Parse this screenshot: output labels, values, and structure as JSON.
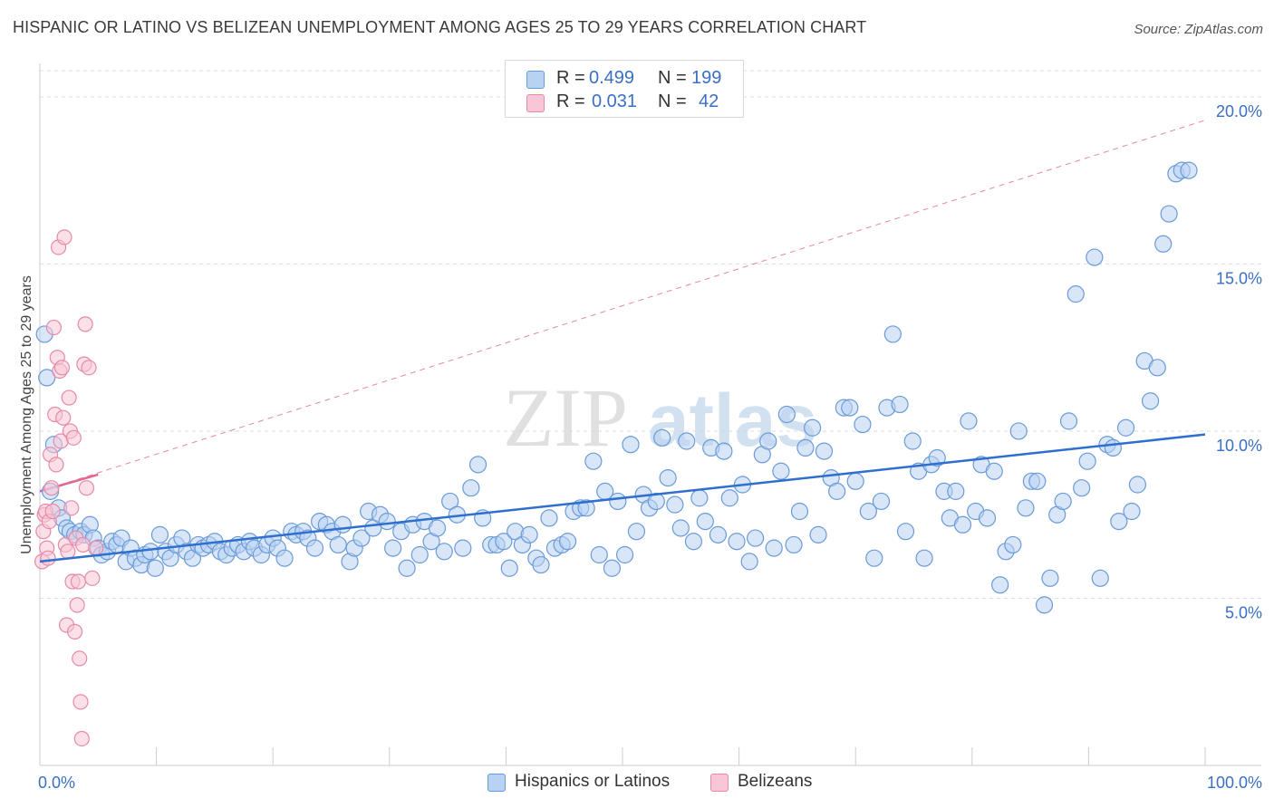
{
  "header": {
    "title": "HISPANIC OR LATINO VS BELIZEAN UNEMPLOYMENT AMONG AGES 25 TO 29 YEARS CORRELATION CHART",
    "source": "Source: ZipAtlas.com"
  },
  "watermark": {
    "text_zip": "ZIP",
    "text_atlas": "atlas"
  },
  "legend": {
    "rows": [
      {
        "r_label": "R =",
        "r_value": "0.499",
        "n_label": "N =",
        "n_value": "199"
      },
      {
        "r_label": "R =",
        "r_value": "0.031",
        "n_label": "N =",
        "n_value": "42"
      }
    ]
  },
  "colors": {
    "blue_fill": "#b8d2f2",
    "blue_stroke": "#6a9ad8",
    "blue_line": "#2f6fce",
    "pink_fill": "#f8c6d6",
    "pink_stroke": "#e58aa8",
    "pink_line": "#e06890",
    "grid": "#dddddd",
    "axis_label": "#3a6fc4"
  },
  "chart_data": {
    "type": "scatter",
    "ylabel": "Unemployment Among Ages 25 to 29 years",
    "x_tick_labels": [
      "0.0%",
      "100.0%"
    ],
    "y_tick_labels": [
      "5.0%",
      "10.0%",
      "15.0%",
      "20.0%"
    ],
    "x_range": [
      0,
      100
    ],
    "y_range": [
      0,
      21
    ],
    "y_ticks": [
      5,
      10,
      15,
      20
    ],
    "grid": true,
    "legend_position": "bottom-center",
    "series": [
      {
        "name": "Hispanics or Latinos",
        "trend": {
          "x0": 0,
          "y0": 6.1,
          "x1": 100,
          "y1": 9.9
        },
        "points": [
          [
            0.4,
            12.9
          ],
          [
            0.6,
            11.6
          ],
          [
            0.9,
            8.2
          ],
          [
            1.2,
            9.6
          ],
          [
            1.6,
            7.7
          ],
          [
            1.9,
            7.4
          ],
          [
            2.3,
            7.1
          ],
          [
            2.6,
            7.0
          ],
          [
            3.0,
            6.9
          ],
          [
            3.5,
            7.0
          ],
          [
            3.8,
            6.9
          ],
          [
            4.3,
            7.2
          ],
          [
            4.6,
            6.8
          ],
          [
            5.0,
            6.5
          ],
          [
            5.3,
            6.3
          ],
          [
            5.8,
            6.4
          ],
          [
            6.2,
            6.7
          ],
          [
            6.6,
            6.6
          ],
          [
            7.0,
            6.8
          ],
          [
            7.4,
            6.1
          ],
          [
            7.8,
            6.5
          ],
          [
            8.2,
            6.2
          ],
          [
            8.7,
            6.0
          ],
          [
            9.0,
            6.3
          ],
          [
            9.5,
            6.4
          ],
          [
            9.9,
            5.9
          ],
          [
            10.3,
            6.9
          ],
          [
            10.8,
            6.4
          ],
          [
            11.2,
            6.2
          ],
          [
            11.7,
            6.6
          ],
          [
            12.2,
            6.8
          ],
          [
            12.6,
            6.4
          ],
          [
            13.1,
            6.2
          ],
          [
            13.6,
            6.6
          ],
          [
            14.0,
            6.5
          ],
          [
            14.5,
            6.6
          ],
          [
            15.0,
            6.7
          ],
          [
            15.5,
            6.4
          ],
          [
            16.0,
            6.3
          ],
          [
            16.5,
            6.5
          ],
          [
            17.0,
            6.6
          ],
          [
            17.5,
            6.4
          ],
          [
            18.0,
            6.7
          ],
          [
            18.4,
            6.5
          ],
          [
            19.0,
            6.3
          ],
          [
            19.5,
            6.6
          ],
          [
            20.0,
            6.8
          ],
          [
            20.4,
            6.5
          ],
          [
            21.0,
            6.2
          ],
          [
            21.6,
            7.0
          ],
          [
            22.0,
            6.9
          ],
          [
            22.6,
            7.0
          ],
          [
            23.0,
            6.8
          ],
          [
            23.6,
            6.5
          ],
          [
            24.0,
            7.3
          ],
          [
            24.6,
            7.2
          ],
          [
            25.1,
            7.0
          ],
          [
            25.6,
            6.6
          ],
          [
            26.0,
            7.2
          ],
          [
            26.6,
            6.1
          ],
          [
            27.0,
            6.5
          ],
          [
            27.6,
            6.8
          ],
          [
            28.2,
            7.6
          ],
          [
            28.6,
            7.1
          ],
          [
            29.2,
            7.5
          ],
          [
            29.8,
            7.3
          ],
          [
            30.3,
            6.5
          ],
          [
            31.0,
            7.0
          ],
          [
            31.5,
            5.9
          ],
          [
            32.0,
            7.2
          ],
          [
            32.6,
            6.3
          ],
          [
            33.0,
            7.3
          ],
          [
            33.6,
            6.7
          ],
          [
            34.1,
            7.1
          ],
          [
            34.7,
            6.4
          ],
          [
            35.2,
            7.9
          ],
          [
            35.8,
            7.5
          ],
          [
            36.3,
            6.5
          ],
          [
            37.0,
            8.3
          ],
          [
            37.6,
            9.0
          ],
          [
            38.0,
            7.4
          ],
          [
            38.7,
            6.6
          ],
          [
            39.2,
            6.6
          ],
          [
            39.8,
            6.7
          ],
          [
            40.3,
            5.9
          ],
          [
            40.8,
            7.0
          ],
          [
            41.4,
            6.6
          ],
          [
            42.0,
            6.9
          ],
          [
            42.6,
            6.2
          ],
          [
            43.0,
            6.0
          ],
          [
            43.7,
            7.4
          ],
          [
            44.2,
            6.5
          ],
          [
            44.8,
            6.6
          ],
          [
            45.3,
            6.7
          ],
          [
            45.8,
            7.6
          ],
          [
            46.4,
            7.7
          ],
          [
            46.9,
            7.7
          ],
          [
            47.5,
            9.1
          ],
          [
            48.0,
            6.3
          ],
          [
            48.5,
            8.2
          ],
          [
            49.1,
            5.9
          ],
          [
            49.6,
            7.9
          ],
          [
            50.2,
            6.3
          ],
          [
            50.7,
            9.6
          ],
          [
            51.2,
            7.0
          ],
          [
            51.8,
            8.1
          ],
          [
            52.3,
            7.7
          ],
          [
            52.9,
            7.9
          ],
          [
            53.4,
            9.8
          ],
          [
            53.9,
            8.6
          ],
          [
            54.5,
            7.8
          ],
          [
            55.0,
            7.1
          ],
          [
            55.5,
            9.7
          ],
          [
            56.1,
            6.7
          ],
          [
            56.6,
            8.0
          ],
          [
            57.1,
            7.3
          ],
          [
            57.6,
            9.5
          ],
          [
            58.2,
            6.9
          ],
          [
            58.7,
            9.4
          ],
          [
            59.2,
            8.0
          ],
          [
            59.8,
            6.7
          ],
          [
            60.3,
            8.4
          ],
          [
            60.9,
            6.1
          ],
          [
            61.4,
            6.8
          ],
          [
            62.0,
            9.3
          ],
          [
            62.5,
            9.7
          ],
          [
            63.0,
            6.5
          ],
          [
            63.6,
            8.8
          ],
          [
            64.1,
            10.5
          ],
          [
            64.7,
            6.6
          ],
          [
            65.2,
            7.6
          ],
          [
            65.7,
            9.5
          ],
          [
            66.3,
            10.1
          ],
          [
            66.8,
            6.9
          ],
          [
            67.3,
            9.4
          ],
          [
            67.9,
            8.6
          ],
          [
            68.4,
            8.2
          ],
          [
            69.0,
            10.7
          ],
          [
            69.5,
            10.7
          ],
          [
            70.0,
            8.5
          ],
          [
            70.6,
            10.2
          ],
          [
            71.1,
            7.6
          ],
          [
            71.6,
            6.2
          ],
          [
            72.2,
            7.9
          ],
          [
            72.7,
            10.7
          ],
          [
            73.2,
            12.9
          ],
          [
            73.8,
            10.8
          ],
          [
            74.3,
            7.0
          ],
          [
            74.9,
            9.7
          ],
          [
            75.4,
            8.8
          ],
          [
            75.9,
            6.2
          ],
          [
            76.5,
            9.0
          ],
          [
            77.0,
            9.2
          ],
          [
            77.6,
            8.2
          ],
          [
            78.1,
            7.4
          ],
          [
            78.6,
            8.2
          ],
          [
            79.2,
            7.2
          ],
          [
            79.7,
            10.3
          ],
          [
            80.3,
            7.6
          ],
          [
            80.8,
            9.0
          ],
          [
            81.3,
            7.4
          ],
          [
            81.9,
            8.8
          ],
          [
            82.4,
            5.4
          ],
          [
            82.9,
            6.4
          ],
          [
            83.5,
            6.6
          ],
          [
            84.0,
            10.0
          ],
          [
            84.6,
            7.7
          ],
          [
            85.1,
            8.5
          ],
          [
            85.6,
            8.5
          ],
          [
            86.2,
            4.8
          ],
          [
            86.7,
            5.6
          ],
          [
            87.3,
            7.5
          ],
          [
            87.8,
            7.9
          ],
          [
            88.3,
            10.3
          ],
          [
            88.9,
            14.1
          ],
          [
            89.4,
            8.3
          ],
          [
            89.9,
            9.1
          ],
          [
            90.5,
            15.2
          ],
          [
            91.0,
            5.6
          ],
          [
            91.6,
            9.6
          ],
          [
            92.1,
            9.5
          ],
          [
            92.6,
            7.3
          ],
          [
            93.2,
            10.1
          ],
          [
            93.7,
            7.6
          ],
          [
            94.2,
            8.4
          ],
          [
            94.8,
            12.1
          ],
          [
            95.3,
            10.9
          ],
          [
            95.9,
            11.9
          ],
          [
            96.4,
            15.6
          ],
          [
            96.9,
            16.5
          ],
          [
            97.5,
            17.7
          ],
          [
            98.0,
            17.8
          ],
          [
            98.6,
            17.8
          ]
        ]
      },
      {
        "name": "Belizeans",
        "trend": {
          "x0": 0,
          "y0": 8.2,
          "x1": 5,
          "y1": 8.7
        },
        "trend_extended": {
          "x0": 0,
          "y0": 8.2,
          "x1": 100,
          "y1": 19.3
        },
        "points": [
          [
            0.2,
            6.1
          ],
          [
            0.3,
            7.0
          ],
          [
            0.4,
            7.5
          ],
          [
            0.5,
            7.6
          ],
          [
            0.6,
            6.5
          ],
          [
            0.7,
            6.2
          ],
          [
            0.8,
            7.3
          ],
          [
            0.9,
            9.3
          ],
          [
            1.0,
            8.3
          ],
          [
            1.1,
            7.6
          ],
          [
            1.2,
            13.1
          ],
          [
            1.3,
            10.5
          ],
          [
            1.4,
            9.0
          ],
          [
            1.5,
            12.2
          ],
          [
            1.6,
            15.5
          ],
          [
            1.7,
            11.8
          ],
          [
            1.8,
            9.7
          ],
          [
            1.9,
            11.9
          ],
          [
            2.0,
            10.4
          ],
          [
            2.1,
            15.8
          ],
          [
            2.2,
            6.6
          ],
          [
            2.3,
            4.2
          ],
          [
            2.4,
            6.4
          ],
          [
            2.5,
            11.0
          ],
          [
            2.6,
            10.0
          ],
          [
            2.7,
            7.7
          ],
          [
            2.8,
            5.5
          ],
          [
            2.9,
            9.8
          ],
          [
            3.0,
            4.0
          ],
          [
            3.1,
            6.8
          ],
          [
            3.2,
            4.8
          ],
          [
            3.3,
            5.5
          ],
          [
            3.4,
            3.2
          ],
          [
            3.5,
            1.9
          ],
          [
            3.6,
            0.8
          ],
          [
            3.7,
            6.6
          ],
          [
            3.8,
            12.0
          ],
          [
            3.9,
            13.2
          ],
          [
            4.0,
            8.3
          ],
          [
            4.2,
            11.9
          ],
          [
            4.5,
            5.6
          ],
          [
            4.8,
            6.5
          ]
        ]
      }
    ]
  },
  "bottom_legend": {
    "items": [
      {
        "label": "Hispanics or Latinos"
      },
      {
        "label": "Belizeans"
      }
    ]
  }
}
